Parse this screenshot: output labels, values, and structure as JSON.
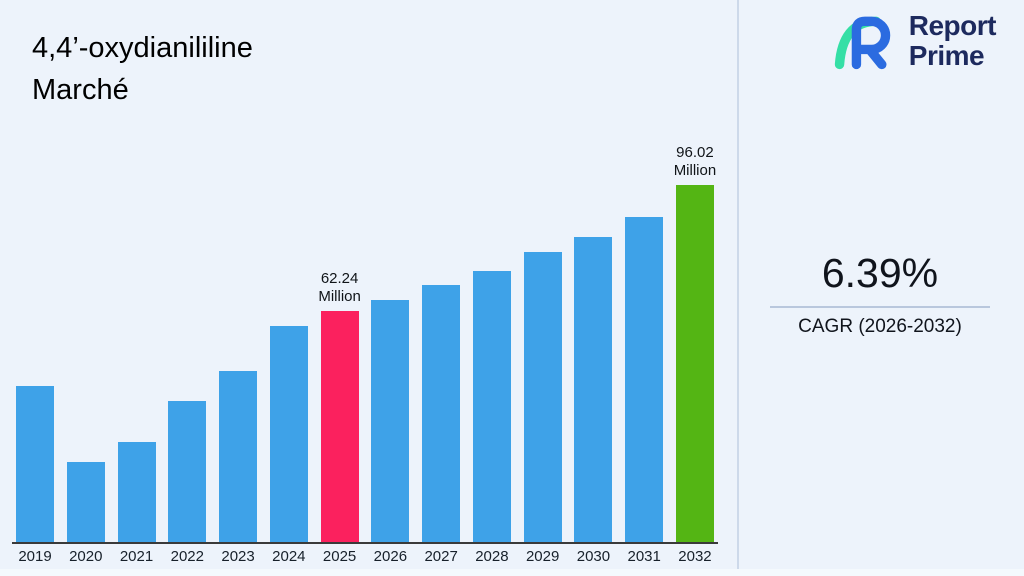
{
  "title": {
    "line1": "4,4’-oxydianililine",
    "line2": "Marché"
  },
  "logo": {
    "word1": "Report",
    "word2": "Prime",
    "text_color": "#1d2a5e",
    "mark_teal": "#35dfa6",
    "mark_blue": "#2b6be0"
  },
  "separator_color": "#cdd9ea",
  "cagr": {
    "value": "6.39%",
    "label": "CAGR (2026-2032)"
  },
  "chart_data": {
    "type": "bar",
    "title": "4,4’-oxydianililine Marché",
    "unit": "Million",
    "categories": [
      "2019",
      "2020",
      "2021",
      "2022",
      "2023",
      "2024",
      "2025",
      "2026",
      "2027",
      "2028",
      "2029",
      "2030",
      "2031",
      "2032"
    ],
    "values": [
      42,
      21.5,
      27,
      38,
      46,
      58,
      62.24,
      65,
      69,
      73,
      78,
      82,
      87.5,
      96.02
    ],
    "ylim": [
      0,
      100
    ],
    "grid": false,
    "legend": false,
    "xlabel": "",
    "ylabel": "",
    "bar_color": "#3EA2E8",
    "axis_line_color": "#3a3a3a",
    "highlights": [
      {
        "index": 6,
        "color": "#FB215E",
        "label_lines": [
          "62.24",
          "Million"
        ]
      },
      {
        "index": 13,
        "color": "#54B514",
        "label_lines": [
          "96.02",
          "Million"
        ]
      }
    ]
  }
}
